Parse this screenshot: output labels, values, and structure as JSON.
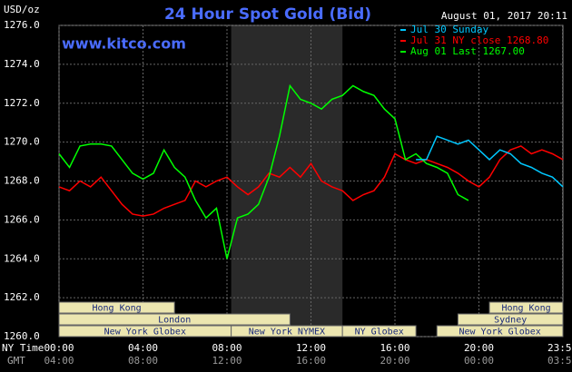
{
  "chart_data": {
    "type": "line",
    "title": "24 Hour Spot Gold (Bid)",
    "y_label": "USD/oz",
    "source": "www.kitco.com",
    "timestamp": "August 01, 2017 20:11",
    "x_label": "NY Time",
    "x2_label": "GMT",
    "ylim": [
      1260,
      1276
    ],
    "yticks": [
      {
        "value": 1260,
        "label": "1260.0"
      },
      {
        "value": 1262,
        "label": "1262.0"
      },
      {
        "value": 1264,
        "label": "1264.0"
      },
      {
        "value": 1266,
        "label": "1266.0"
      },
      {
        "value": 1268,
        "label": "1268.0"
      },
      {
        "value": 1270,
        "label": "1270.0"
      },
      {
        "value": 1272,
        "label": "1272.0"
      },
      {
        "value": 1274,
        "label": "1274.0"
      },
      {
        "value": 1276,
        "label": "1276.0"
      }
    ],
    "xlim": [
      0,
      24
    ],
    "xticks": [
      {
        "value": 0,
        "label": "00:00"
      },
      {
        "value": 4,
        "label": "04:00"
      },
      {
        "value": 8,
        "label": "08:00"
      },
      {
        "value": 12,
        "label": "12:00"
      },
      {
        "value": 16,
        "label": "16:00"
      },
      {
        "value": 20,
        "label": "20:00"
      },
      {
        "value": 23.98,
        "label": "23:59"
      }
    ],
    "x2ticks": [
      {
        "value": 0,
        "label": "04:00"
      },
      {
        "value": 4,
        "label": "08:00"
      },
      {
        "value": 8,
        "label": "12:00"
      },
      {
        "value": 12,
        "label": "16:00"
      },
      {
        "value": 16,
        "label": "20:00"
      },
      {
        "value": 20,
        "label": "00:00"
      },
      {
        "value": 23.98,
        "label": "03:59"
      }
    ],
    "grid": true,
    "x": [
      0,
      0.5,
      1,
      1.5,
      2,
      2.5,
      3,
      3.5,
      4,
      4.5,
      5,
      5.5,
      6,
      6.5,
      7,
      7.5,
      8,
      8.5,
      9,
      9.5,
      10,
      10.5,
      11,
      11.5,
      12,
      12.5,
      13,
      13.5,
      14,
      14.5,
      15,
      15.5,
      16,
      16.5,
      17,
      17.5,
      18,
      18.5,
      19,
      19.5,
      20,
      20.5,
      21,
      21.5,
      22,
      22.5,
      23,
      23.5,
      24
    ],
    "series": [
      {
        "name": "Jul 30 Sunday",
        "color": "#00c8ff",
        "values": [
          null,
          null,
          null,
          null,
          null,
          null,
          null,
          null,
          null,
          null,
          null,
          null,
          null,
          null,
          null,
          null,
          null,
          null,
          null,
          null,
          null,
          null,
          null,
          null,
          null,
          null,
          null,
          null,
          null,
          null,
          null,
          null,
          null,
          null,
          1269.1,
          1269.1,
          1270.3,
          1270.1,
          1269.9,
          1270.1,
          1269.6,
          1269.1,
          1269.6,
          1269.4,
          1268.9,
          1268.7,
          1268.4,
          1268.2,
          1267.7
        ]
      },
      {
        "name": "Jul 31 NY close 1268.80",
        "color": "#ff0000",
        "values": [
          1267.7,
          1267.5,
          1268.0,
          1267.7,
          1268.2,
          1267.5,
          1266.8,
          1266.3,
          1266.2,
          1266.3,
          1266.6,
          1266.8,
          1267.0,
          1268.0,
          1267.7,
          1268.0,
          1268.2,
          1267.7,
          1267.3,
          1267.7,
          1268.4,
          1268.2,
          1268.7,
          1268.2,
          1268.9,
          1268.0,
          1267.7,
          1267.5,
          1267.0,
          1267.3,
          1267.5,
          1268.2,
          1269.4,
          1269.1,
          1268.9,
          1269.1,
          1268.9,
          1268.7,
          1268.4,
          1268.0,
          1267.7,
          1268.2,
          1269.1,
          1269.6,
          1269.8,
          1269.4,
          1269.6,
          1269.4,
          1269.1
        ]
      },
      {
        "name": "Aug 01 Last 1267.00",
        "color": "#00ff00",
        "values": [
          1269.4,
          1268.7,
          1269.8,
          1269.9,
          1269.9,
          1269.8,
          1269.1,
          1268.4,
          1268.1,
          1268.4,
          1269.6,
          1268.7,
          1268.2,
          1267.0,
          1266.1,
          1266.6,
          1264.0,
          1266.1,
          1266.3,
          1266.8,
          1268.2,
          1270.3,
          1272.9,
          1272.2,
          1272.0,
          1271.7,
          1272.2,
          1272.4,
          1272.9,
          1272.6,
          1272.4,
          1271.7,
          1271.2,
          1269.1,
          1269.4,
          1268.9,
          1268.7,
          1268.4,
          1267.3,
          1267.0,
          null,
          null,
          null,
          null,
          null,
          null,
          null,
          null,
          null
        ]
      }
    ],
    "sessions": [
      [
        {
          "name": "Hong Kong",
          "start": 0,
          "end": 5.5
        },
        {
          "name": "Hong Kong",
          "start": 20.5,
          "end": 24
        }
      ],
      [
        {
          "name": "London",
          "start": 0,
          "end": 11
        },
        {
          "name": "Sydney",
          "start": 19,
          "end": 24
        }
      ],
      [
        {
          "name": "New York Globex",
          "start": 0,
          "end": 8.2
        },
        {
          "name": "New York NYMEX",
          "start": 8.2,
          "end": 13.5
        },
        {
          "name": "NY Globex",
          "start": 13.5,
          "end": 17
        },
        {
          "name": "New York Globex",
          "start": 18,
          "end": 24
        }
      ]
    ]
  }
}
